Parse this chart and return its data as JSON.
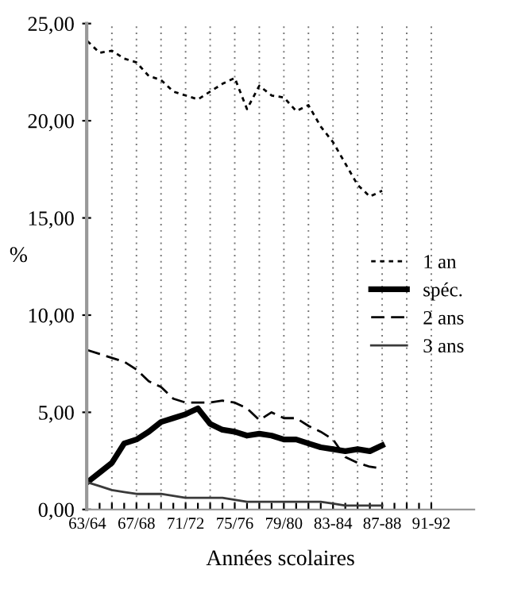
{
  "chart_data": {
    "type": "line",
    "xlabel": "Années scolaires",
    "ylabel": "%",
    "categories": [
      "63/64",
      null,
      null,
      null,
      "67/68",
      null,
      null,
      null,
      "71/72",
      null,
      null,
      null,
      "75/76",
      null,
      null,
      null,
      "79/80",
      null,
      null,
      null,
      "83-84",
      null,
      null,
      null,
      "87-88",
      null,
      null,
      null,
      "91-92"
    ],
    "series": [
      {
        "name": "1 an",
        "color": "#000000",
        "line_style": "dotted",
        "values": [
          24.1,
          23.5,
          23.6,
          23.2,
          23.0,
          22.3,
          22.1,
          21.5,
          21.3,
          21.1,
          21.5,
          21.9,
          22.2,
          20.6,
          21.8,
          21.3,
          21.2,
          20.5,
          20.8,
          19.7,
          18.9,
          17.8,
          16.7,
          16.1,
          16.4,
          null,
          null,
          null,
          null
        ]
      },
      {
        "name": "spéc.",
        "color": "#000000",
        "line_style": "solid",
        "values": [
          1.4,
          1.9,
          2.4,
          3.4,
          3.6,
          4.0,
          4.5,
          4.7,
          4.9,
          5.2,
          4.4,
          4.1,
          4.0,
          3.8,
          3.9,
          3.8,
          3.6,
          3.6,
          3.4,
          3.2,
          3.1,
          3.0,
          3.1,
          3.0,
          3.3,
          null,
          null,
          null,
          null
        ]
      },
      {
        "name": "2 ans",
        "color": "#000000",
        "line_style": "dashed",
        "values": [
          8.2,
          8.0,
          7.8,
          7.6,
          7.2,
          6.6,
          6.3,
          5.7,
          5.5,
          5.5,
          5.5,
          5.6,
          5.5,
          5.2,
          4.6,
          5.0,
          4.7,
          4.7,
          4.3,
          4.0,
          3.6,
          2.7,
          2.4,
          2.2,
          2.1,
          null,
          null,
          null,
          null
        ]
      },
      {
        "name": "3 ans",
        "color": "#3a3a3a",
        "line_style": "solid",
        "values": [
          1.4,
          1.2,
          1.0,
          0.9,
          0.8,
          0.8,
          0.8,
          0.7,
          0.6,
          0.6,
          0.6,
          0.6,
          0.5,
          0.4,
          0.4,
          0.4,
          0.4,
          0.4,
          0.4,
          0.4,
          0.3,
          0.2,
          0.2,
          0.2,
          0.2,
          null,
          null,
          null,
          null
        ]
      }
    ],
    "ylim": [
      0,
      25
    ],
    "yticks": [
      {
        "value": 0,
        "label": "0,00"
      },
      {
        "value": 5,
        "label": "5,00"
      },
      {
        "value": 10,
        "label": "10,00"
      },
      {
        "value": 15,
        "label": "15,00"
      },
      {
        "value": 20,
        "label": "20,00"
      },
      {
        "value": 25,
        "label": "25,00"
      }
    ],
    "grid": "x",
    "legend": "right",
    "marker": "none"
  }
}
